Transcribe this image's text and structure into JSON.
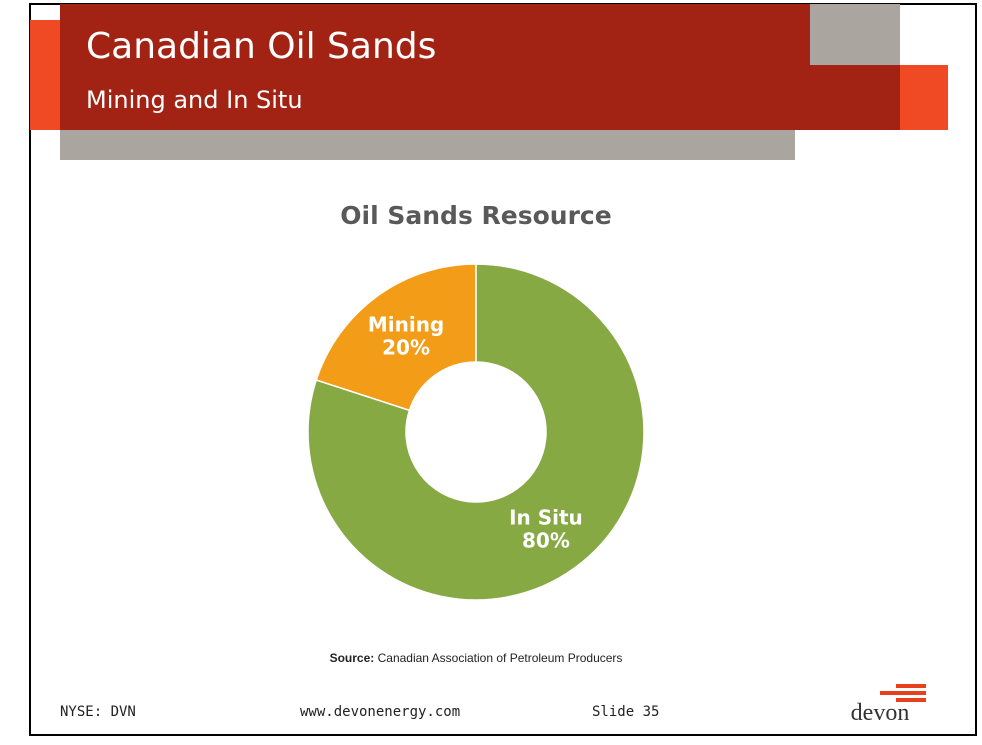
{
  "header": {
    "title": "Canadian Oil Sands",
    "subtitle": "Mining and In Situ"
  },
  "chart_data": {
    "type": "donut",
    "title": "Oil Sands Resource",
    "categories": [
      "Mining",
      "In Situ"
    ],
    "values": [
      20,
      80
    ],
    "value_labels": [
      "20%",
      "80%"
    ],
    "colors": [
      "#f39c18",
      "#87a944"
    ]
  },
  "source": {
    "label": "Source:",
    "text": "Canadian Association of Petroleum Producers"
  },
  "footer": {
    "ticker": "NYSE: DVN",
    "website": "www.devonenergy.com",
    "slide": "Slide 35",
    "logo": "devon"
  }
}
